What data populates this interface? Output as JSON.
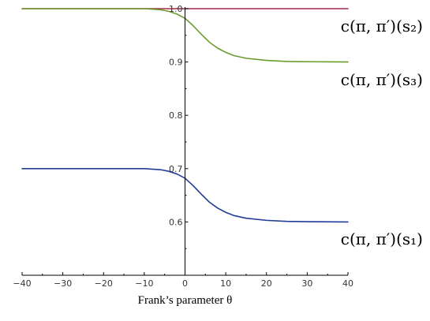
{
  "chart_data": {
    "type": "line",
    "xlabel": "Frank’s parameter θ",
    "ylabel": "",
    "xlim": [
      -40,
      40
    ],
    "ylim": [
      0.5,
      1.0
    ],
    "x_ticks": [
      -40,
      -30,
      -20,
      -10,
      0,
      10,
      20,
      30,
      40
    ],
    "x_tick_labels": [
      "−40",
      "−30",
      "−20",
      "−10",
      "0",
      "10",
      "20",
      "30",
      "40"
    ],
    "y_ticks": [
      0.6,
      0.7,
      0.8,
      0.9,
      1.0
    ],
    "y_tick_labels": [
      "0.6",
      "0.7",
      "0.8",
      "0.9",
      "1.0"
    ],
    "grid": false,
    "series": [
      {
        "name": "c(π, π′)(s₂)",
        "color": "#a0294a",
        "x": [
          -40,
          -30,
          -20,
          -10,
          0,
          10,
          20,
          30,
          40
        ],
        "y": [
          1.0,
          1.0,
          1.0,
          1.0,
          1.0,
          1.0,
          1.0,
          1.0,
          1.0
        ]
      },
      {
        "name": "c(π, π′)(s₃)",
        "color": "#6b9a2c",
        "x": [
          -40,
          -30,
          -20,
          -10,
          -6,
          -4,
          -2,
          0,
          2,
          4,
          6,
          8,
          10,
          12,
          15,
          20,
          25,
          30,
          40
        ],
        "y": [
          1.0,
          1.0,
          1.0,
          1.0,
          0.998,
          0.995,
          0.99,
          0.982,
          0.968,
          0.952,
          0.937,
          0.926,
          0.918,
          0.912,
          0.907,
          0.903,
          0.901,
          0.9005,
          0.9
        ]
      },
      {
        "name": "c(π, π′)(s₁)",
        "color": "#1f3c99",
        "x": [
          -40,
          -30,
          -20,
          -10,
          -6,
          -4,
          -2,
          0,
          2,
          4,
          6,
          8,
          10,
          12,
          15,
          20,
          25,
          30,
          40
        ],
        "y": [
          0.7,
          0.7,
          0.7,
          0.7,
          0.698,
          0.695,
          0.69,
          0.682,
          0.668,
          0.652,
          0.637,
          0.626,
          0.618,
          0.612,
          0.607,
          0.603,
          0.601,
          0.6005,
          0.6
        ]
      }
    ]
  }
}
